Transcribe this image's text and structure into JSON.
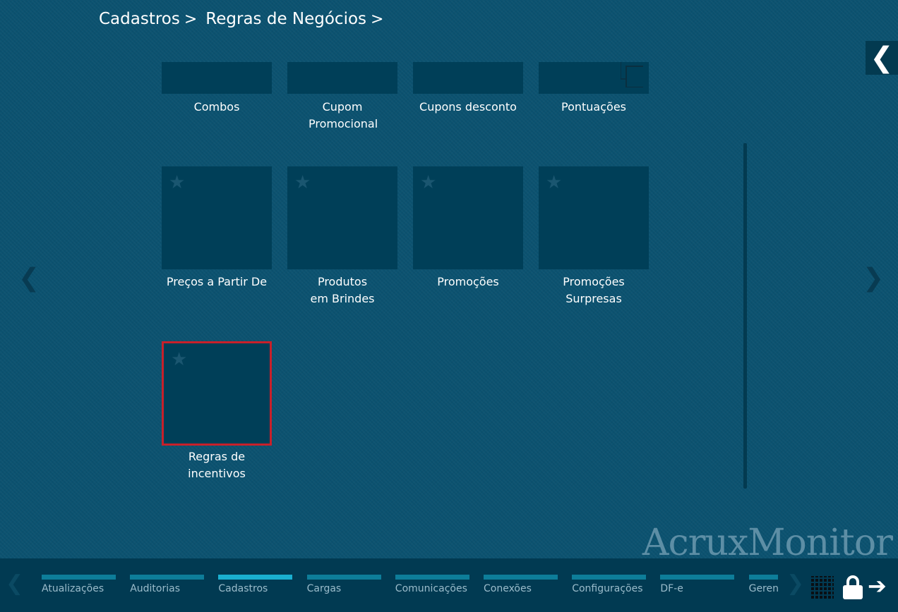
{
  "breadcrumb": [
    "Cadastros",
    "Regras de Negócios"
  ],
  "tiles": [
    {
      "label": "Combos"
    },
    {
      "label": "Cupom Promocional"
    },
    {
      "label": "Cupons desconto"
    },
    {
      "label": "Pontuações"
    },
    {
      "label": "Preços a Partir De"
    },
    {
      "label": "Produtos em Brindes"
    },
    {
      "label": "Promoções"
    },
    {
      "label": "Promoções Surpresas"
    },
    {
      "label": "Regras de incentivos",
      "selected": true
    }
  ],
  "brand": "AcruxMonitor",
  "tabs": [
    {
      "label": "Atualizações"
    },
    {
      "label": "Auditorias"
    },
    {
      "label": "Cadastros",
      "active": true
    },
    {
      "label": "Cargas"
    },
    {
      "label": "Comunicações"
    },
    {
      "label": "Conexões"
    },
    {
      "label": "Configurações"
    },
    {
      "label": "DF-e"
    },
    {
      "label": "Gerenciamento"
    }
  ],
  "colors": {
    "background": "#0b5270",
    "tile": "#003f58",
    "selected_border": "#c8202a",
    "tab_active": "#1aafd0",
    "tab": "#0d7d99"
  }
}
